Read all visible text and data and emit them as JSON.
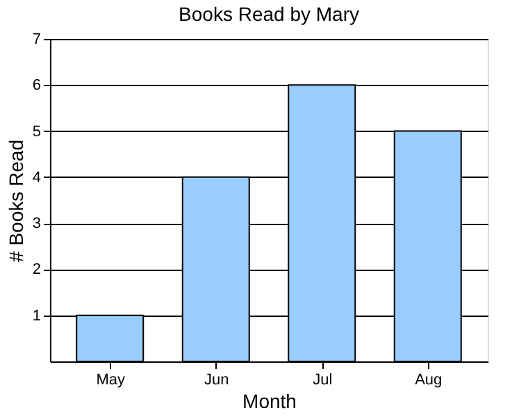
{
  "chart_data": {
    "type": "bar",
    "title": "Books Read by Mary",
    "xlabel": "Month",
    "ylabel": "# Books Read",
    "categories": [
      "May",
      "Jun",
      "Jul",
      "Aug"
    ],
    "values": [
      1,
      4,
      6,
      5
    ],
    "color": "#99ccff",
    "ylim": [
      0,
      7
    ],
    "yticks": [
      1,
      2,
      3,
      4,
      5,
      6,
      7
    ],
    "grid": "y"
  }
}
